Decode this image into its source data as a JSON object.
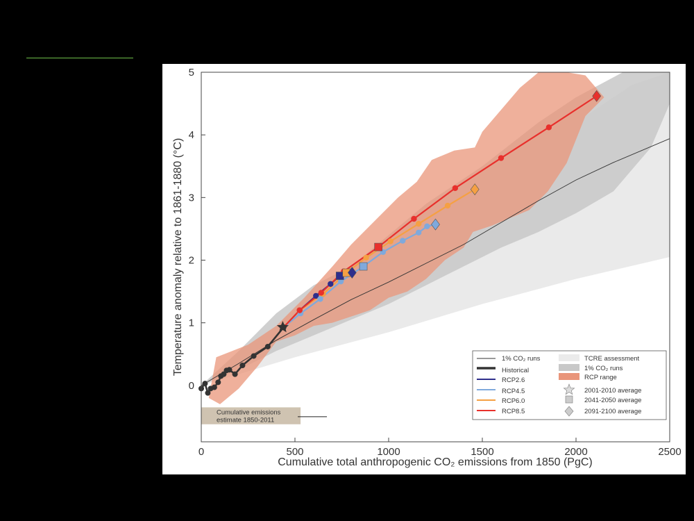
{
  "chart_data": {
    "type": "line",
    "xlabel": "Cumulative total anthropogenic CO₂ emissions from 1850 (PgC)",
    "ylabel": "Temperature anomaly relative to 1861-1880 (°C)",
    "xlim": [
      0,
      2500
    ],
    "ylim": [
      -0.9,
      5
    ],
    "xticks": [
      "0",
      "500",
      "1000",
      "1500",
      "2000",
      "2500"
    ],
    "yticks": [
      "0",
      "1",
      "2",
      "3",
      "4",
      "5"
    ],
    "grid": false,
    "legend_position": "bottom-right",
    "annotation": "Cumulative emissions estimate 1850-2011",
    "emissions_estimate_range": [
      0,
      530
    ],
    "emissions_estimate_central": 515,
    "legend": {
      "one_pct_runs": "1% CO₂ runs",
      "historical": "Historical",
      "rcp26": "RCP2.6",
      "rcp45": "RCP4.5",
      "rcp60": "RCP6.0",
      "rcp85": "RCP8.5",
      "tcre": "TCRE assessment",
      "one_pct_range": "1% CO₂ runs",
      "rcp_range": "RCP range",
      "avg_2001_2010": "2001-2010 average",
      "avg_2041_2050": "2041-2050 average",
      "avg_2091_2100": "2091-2100 average"
    },
    "colors": {
      "historical": "#333333",
      "rcp26": "#2e2e8c",
      "rcp45": "#7fa9dc",
      "rcp60": "#f5a043",
      "rcp85": "#e8302c",
      "rcp_range": "#e9957a",
      "one_pct_range": "#c8c8c8",
      "tcre": "#e8e8e8"
    },
    "series": [
      {
        "name": "Historical",
        "color_key": "historical",
        "points": [
          [
            0,
            -0.05
          ],
          [
            20,
            0.03
          ],
          [
            35,
            -0.12
          ],
          [
            50,
            -0.05
          ],
          [
            70,
            -0.03
          ],
          [
            90,
            0.05
          ],
          [
            105,
            0.15
          ],
          [
            120,
            0.18
          ],
          [
            135,
            0.24
          ],
          [
            150,
            0.25
          ],
          [
            180,
            0.18
          ],
          [
            220,
            0.32
          ],
          [
            280,
            0.47
          ],
          [
            355,
            0.62
          ],
          [
            440,
            0.93
          ]
        ]
      },
      {
        "name": "RCP2.6",
        "color_key": "rcp26",
        "points": [
          [
            440,
            0.93
          ],
          [
            525,
            1.2
          ],
          [
            612,
            1.43
          ],
          [
            690,
            1.62
          ],
          [
            740,
            1.75
          ],
          [
            768,
            1.8
          ],
          [
            790,
            1.8
          ],
          [
            805,
            1.8
          ]
        ]
      },
      {
        "name": "RCP4.5",
        "color_key": "rcp45",
        "points": [
          [
            440,
            0.93
          ],
          [
            530,
            1.15
          ],
          [
            635,
            1.38
          ],
          [
            745,
            1.66
          ],
          [
            865,
            1.9
          ],
          [
            970,
            2.13
          ],
          [
            1075,
            2.31
          ],
          [
            1160,
            2.44
          ],
          [
            1205,
            2.54
          ],
          [
            1250,
            2.57
          ]
        ]
      },
      {
        "name": "RCP6.0",
        "color_key": "rcp60",
        "points": [
          [
            440,
            0.93
          ],
          [
            525,
            1.2
          ],
          [
            650,
            1.46
          ],
          [
            775,
            1.8
          ],
          [
            880,
            2.04
          ],
          [
            1010,
            2.3
          ],
          [
            1160,
            2.58
          ],
          [
            1315,
            2.87
          ],
          [
            1460,
            3.13
          ]
        ]
      },
      {
        "name": "RCP8.5",
        "color_key": "rcp85",
        "points": [
          [
            440,
            0.93
          ],
          [
            525,
            1.2
          ],
          [
            640,
            1.48
          ],
          [
            760,
            1.82
          ],
          [
            945,
            2.21
          ],
          [
            1135,
            2.66
          ],
          [
            1355,
            3.15
          ],
          [
            1600,
            3.63
          ],
          [
            1855,
            4.12
          ],
          [
            2110,
            4.62
          ]
        ]
      },
      {
        "name": "1% CO₂ runs",
        "color_key": "historical",
        "points": [
          [
            0,
            0
          ],
          [
            200,
            0.35
          ],
          [
            400,
            0.72
          ],
          [
            600,
            1.05
          ],
          [
            800,
            1.37
          ],
          [
            1000,
            1.65
          ],
          [
            1200,
            1.95
          ],
          [
            1400,
            2.25
          ],
          [
            1600,
            2.6
          ],
          [
            1800,
            2.95
          ],
          [
            2000,
            3.28
          ],
          [
            2200,
            3.56
          ],
          [
            2500,
            3.94
          ]
        ]
      }
    ],
    "markers_2041_2050": [
      {
        "series": "rcp26",
        "x": 740,
        "y": 1.75
      },
      {
        "series": "rcp45",
        "x": 865,
        "y": 1.9
      },
      {
        "series": "rcp60",
        "x": 775,
        "y": 1.8
      },
      {
        "series": "rcp85",
        "x": 945,
        "y": 2.21
      }
    ],
    "markers_2091_2100": [
      {
        "series": "rcp26",
        "x": 805,
        "y": 1.8
      },
      {
        "series": "rcp45",
        "x": 1250,
        "y": 2.57
      },
      {
        "series": "rcp60",
        "x": 1460,
        "y": 3.13
      },
      {
        "series": "rcp85",
        "x": 2110,
        "y": 4.62
      }
    ],
    "marker_2001_2010": {
      "x": 435,
      "y": 0.93
    },
    "bands": {
      "tcre": [
        [
          [
            0,
            0
          ],
          [
            400,
            0.85
          ],
          [
            800,
            1.7
          ],
          [
            1200,
            2.5
          ],
          [
            1600,
            3.4
          ],
          [
            2000,
            4.2
          ],
          [
            2300,
            4.8
          ],
          [
            2500,
            5.0
          ]
        ],
        [
          [
            0,
            0
          ],
          [
            500,
            0.45
          ],
          [
            1000,
            0.85
          ],
          [
            1500,
            1.3
          ],
          [
            2000,
            1.7
          ],
          [
            2500,
            2.05
          ]
        ]
      ],
      "one_pct": [
        [
          [
            0,
            0
          ],
          [
            200,
            0.55
          ],
          [
            400,
            1.15
          ],
          [
            600,
            1.6
          ],
          [
            800,
            1.9
          ],
          [
            1000,
            2.4
          ],
          [
            1200,
            2.9
          ],
          [
            1500,
            3.5
          ],
          [
            1800,
            4.2
          ],
          [
            2000,
            4.6
          ],
          [
            2250,
            5.0
          ],
          [
            2500,
            5.0
          ]
        ],
        [
          [
            0,
            0
          ],
          [
            200,
            0.25
          ],
          [
            400,
            0.55
          ],
          [
            600,
            0.8
          ],
          [
            800,
            1.05
          ],
          [
            1000,
            1.3
          ],
          [
            1200,
            1.6
          ],
          [
            1400,
            1.9
          ],
          [
            1600,
            2.2
          ],
          [
            1800,
            2.45
          ],
          [
            2000,
            2.75
          ],
          [
            2200,
            3.1
          ],
          [
            2400,
            3.8
          ],
          [
            2500,
            4.5
          ]
        ]
      ],
      "rcp": [
        [
          [
            80,
            0.45
          ],
          [
            250,
            0.65
          ],
          [
            400,
            0.95
          ],
          [
            550,
            1.4
          ],
          [
            700,
            1.9
          ],
          [
            800,
            2.25
          ],
          [
            950,
            2.7
          ],
          [
            1050,
            3.0
          ],
          [
            1150,
            3.25
          ],
          [
            1230,
            3.6
          ],
          [
            1350,
            3.75
          ],
          [
            1460,
            3.8
          ],
          [
            1500,
            4.05
          ],
          [
            1600,
            4.4
          ],
          [
            1700,
            4.75
          ],
          [
            1800,
            5.0
          ],
          [
            1950,
            5.0
          ],
          [
            2050,
            4.95
          ],
          [
            2150,
            4.6
          ]
        ],
        [
          [
            2150,
            4.6
          ],
          [
            2050,
            4.3
          ],
          [
            1950,
            3.55
          ],
          [
            1850,
            3.1
          ],
          [
            1750,
            2.8
          ],
          [
            1550,
            2.55
          ],
          [
            1450,
            2.45
          ],
          [
            1400,
            2.2
          ],
          [
            1300,
            2.0
          ],
          [
            1200,
            1.7
          ],
          [
            1100,
            1.5
          ],
          [
            1000,
            1.4
          ],
          [
            900,
            1.2
          ],
          [
            800,
            1.1
          ],
          [
            700,
            1.0
          ],
          [
            600,
            0.95
          ],
          [
            500,
            0.8
          ],
          [
            400,
            0.7
          ],
          [
            300,
            0.3
          ],
          [
            200,
            -0.05
          ],
          [
            100,
            -0.3
          ],
          [
            40,
            -0.2
          ]
        ]
      ]
    }
  }
}
